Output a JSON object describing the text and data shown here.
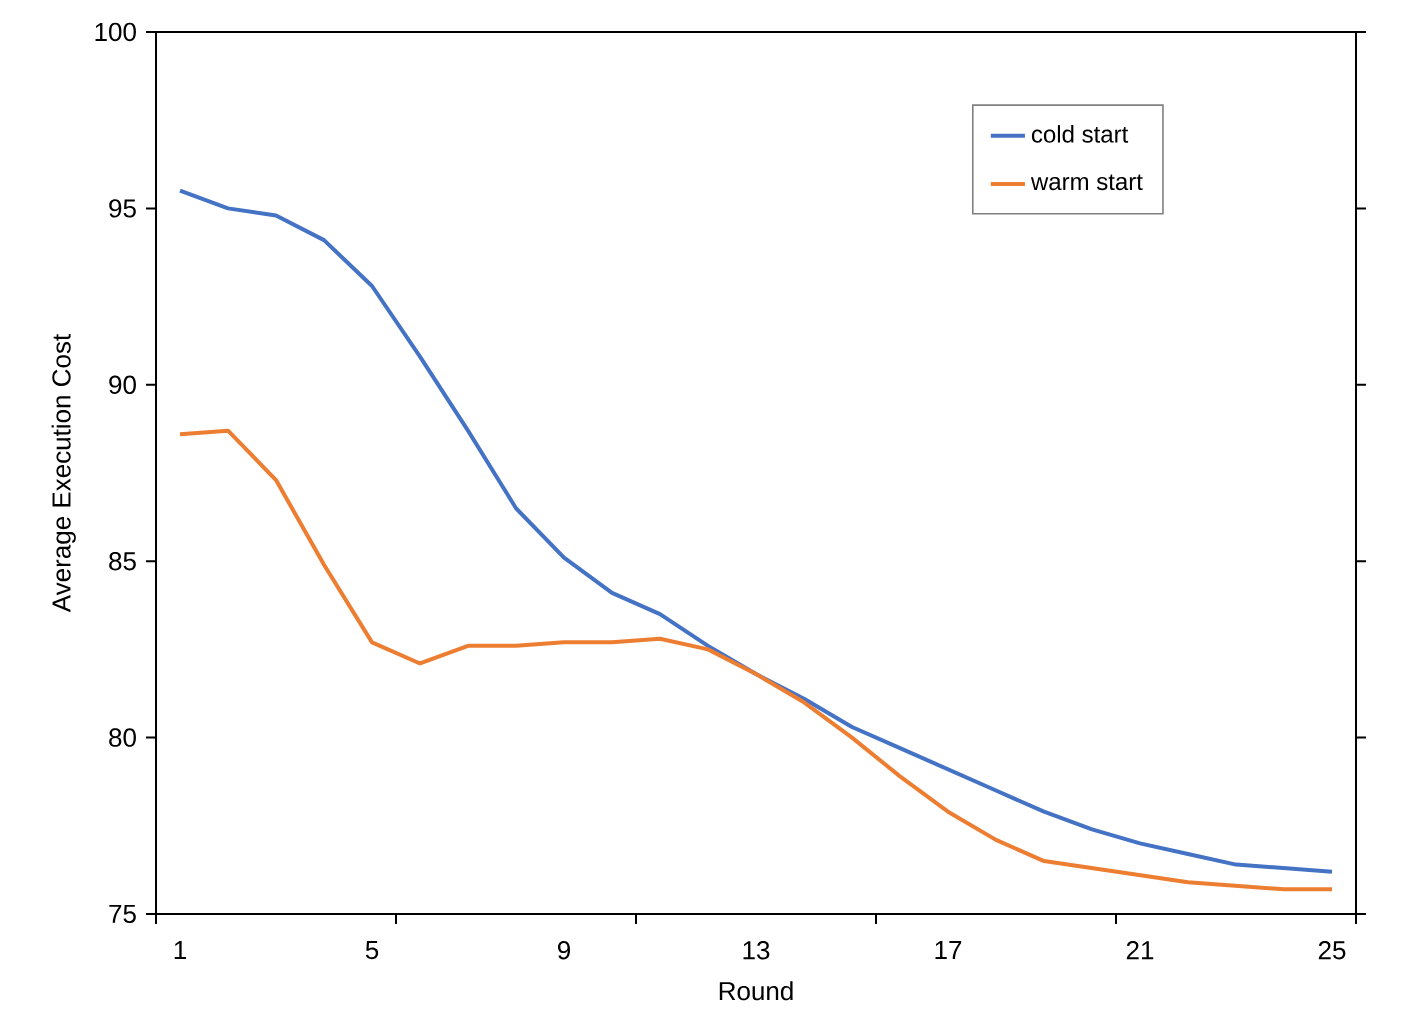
{
  "chart_data": {
    "type": "line",
    "xlabel": "Round",
    "ylabel": "Average Execution Cost",
    "x": [
      1,
      2,
      3,
      4,
      5,
      6,
      7,
      8,
      9,
      10,
      11,
      12,
      13,
      14,
      15,
      16,
      17,
      18,
      19,
      20,
      21,
      22,
      23,
      24,
      25
    ],
    "xlim": [
      0.5,
      25.5
    ],
    "xticks": [
      1,
      5,
      9,
      13,
      17,
      21,
      25,
      {
        "value": 0.5,
        "label": null
      },
      {
        "value": 5.5,
        "label": null
      },
      {
        "value": 10.5,
        "label": null
      },
      {
        "value": 15.5,
        "label": null
      },
      {
        "value": 20.5,
        "label": null
      },
      {
        "value": 25.5,
        "label": null
      }
    ],
    "ylim": [
      75,
      100
    ],
    "yticks": [
      75,
      80,
      85,
      90,
      95,
      100
    ],
    "grid": false,
    "legend": "top right",
    "marker": "none",
    "line_style": "solid",
    "series": [
      {
        "name": "cold start",
        "color": "#4472c4",
        "values": [
          95.5,
          95.0,
          94.8,
          94.1,
          92.8,
          90.8,
          88.7,
          86.5,
          85.1,
          84.1,
          83.5,
          82.6,
          81.8,
          81.1,
          80.3,
          79.7,
          79.1,
          78.5,
          77.9,
          77.4,
          77.0,
          76.7,
          76.4,
          76.3,
          76.2
        ]
      },
      {
        "name": "warm start",
        "color": "#ed7d31",
        "values": [
          88.6,
          88.7,
          87.3,
          84.9,
          82.7,
          82.1,
          82.6,
          82.6,
          82.7,
          82.7,
          82.8,
          82.5,
          81.8,
          81.0,
          80.0,
          78.9,
          77.9,
          77.1,
          76.5,
          76.3,
          76.1,
          75.9,
          75.8,
          75.7,
          75.7
        ]
      }
    ]
  }
}
